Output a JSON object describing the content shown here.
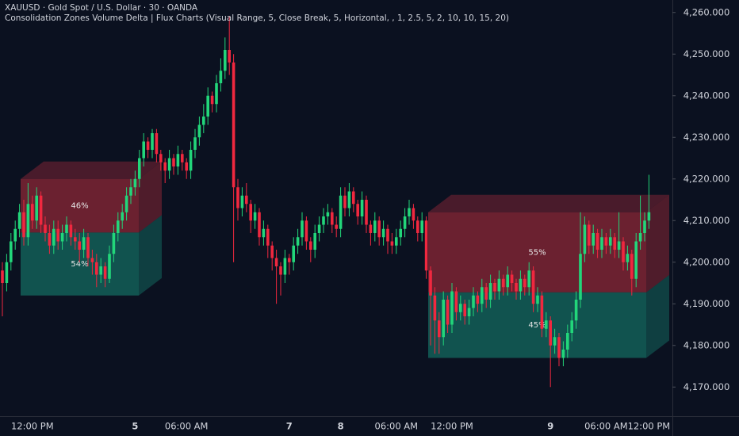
{
  "chart_data": {
    "type": "candlestick",
    "title": "XAUUSD · Gold Spot / U.S. Dollar · 30 · OANDA",
    "subtitle": "Consolidation Zones Volume Delta | Flux Charts (Visual Range, 5, Close Break, 5, Horizontal, , 1, 2.5, 5, 2, 10, 10, 15, 20)",
    "up_color": "#22d67a",
    "down_color": "#f0283f",
    "ylim": [
      4163,
      4263
    ],
    "yticks": [
      {
        "value": 4170,
        "label": "4,170.000"
      },
      {
        "value": 4180,
        "label": "4,180.000"
      },
      {
        "value": 4190,
        "label": "4,190.000"
      },
      {
        "value": 4200,
        "label": "4,200.000"
      },
      {
        "value": 4210,
        "label": "4,210.000"
      },
      {
        "value": 4220,
        "label": "4,220.000"
      },
      {
        "value": 4230,
        "label": "4,230.000"
      },
      {
        "value": 4240,
        "label": "4,240.000"
      },
      {
        "value": 4250,
        "label": "4,250.000"
      },
      {
        "value": 4260,
        "label": "4,260.000"
      }
    ],
    "grid": false,
    "categories": [
      null,
      null,
      null,
      null,
      null,
      null,
      null,
      "12:00 PM",
      null,
      null,
      null,
      null,
      null,
      null,
      null,
      null,
      null,
      null,
      null,
      null,
      null,
      null,
      null,
      null,
      null,
      null,
      null,
      null,
      null,
      null,
      null,
      "5",
      null,
      null,
      null,
      null,
      null,
      null,
      null,
      null,
      null,
      null,
      null,
      "06:00 AM",
      null,
      null,
      null,
      null,
      null,
      null,
      null,
      null,
      null,
      null,
      null,
      null,
      null,
      null,
      null,
      null,
      null,
      null,
      null,
      null,
      null,
      null,
      null,
      "7",
      null,
      null,
      null,
      null,
      null,
      null,
      null,
      null,
      null,
      null,
      null,
      "8",
      null,
      null,
      null,
      null,
      null,
      null,
      null,
      null,
      null,
      null,
      null,
      null,
      "06:00 AM",
      null,
      null,
      null,
      null,
      null,
      null,
      null,
      null,
      null,
      null,
      null,
      null,
      "12:00 PM",
      null,
      null,
      null,
      null,
      null,
      null,
      null,
      null,
      null,
      null,
      null,
      null,
      null,
      null,
      null,
      null,
      null,
      null,
      null,
      null,
      null,
      null,
      "9",
      null,
      null,
      null,
      null,
      null,
      null,
      null,
      null,
      null,
      null,
      null,
      null,
      "06:00 AM",
      null,
      null,
      null,
      null,
      null,
      null,
      null,
      null,
      null,
      "12:00 PM"
    ],
    "candles": [
      [
        4198,
        4200,
        4187,
        4195
      ],
      [
        4195,
        4202,
        4193,
        4200
      ],
      [
        4200,
        4207,
        4198,
        4205
      ],
      [
        4205,
        4210,
        4203,
        4208
      ],
      [
        4208,
        4214,
        4206,
        4212
      ],
      [
        4212,
        4215,
        4204,
        4206
      ],
      [
        4206,
        4219,
        4204,
        4214
      ],
      [
        4214,
        4216,
        4208,
        4210
      ],
      [
        4210,
        4218,
        4208,
        4216
      ],
      [
        4216,
        4217,
        4207,
        4209
      ],
      [
        4209,
        4211,
        4205,
        4207
      ],
      [
        4207,
        4209,
        4202,
        4204
      ],
      [
        4204,
        4210,
        4202,
        4208
      ],
      [
        4208,
        4210,
        4203,
        4205
      ],
      [
        4205,
        4209,
        4203,
        4207
      ],
      [
        4207,
        4211,
        4205,
        4209
      ],
      [
        4209,
        4210,
        4204,
        4206
      ],
      [
        4206,
        4208,
        4203,
        4205
      ],
      [
        4205,
        4207,
        4200,
        4203
      ],
      [
        4203,
        4208,
        4201,
        4206
      ],
      [
        4206,
        4207,
        4199,
        4201
      ],
      [
        4201,
        4203,
        4197,
        4200
      ],
      [
        4200,
        4202,
        4194,
        4197
      ],
      [
        4197,
        4201,
        4195,
        4199
      ],
      [
        4199,
        4200,
        4194,
        4196
      ],
      [
        4196,
        4204,
        4195,
        4202
      ],
      [
        4202,
        4209,
        4200,
        4207
      ],
      [
        4207,
        4212,
        4205,
        4210
      ],
      [
        4210,
        4214,
        4208,
        4212
      ],
      [
        4212,
        4218,
        4210,
        4216
      ],
      [
        4216,
        4220,
        4214,
        4218
      ],
      [
        4218,
        4222,
        4216,
        4220
      ],
      [
        4220,
        4227,
        4218,
        4225
      ],
      [
        4225,
        4231,
        4223,
        4229
      ],
      [
        4229,
        4230,
        4225,
        4227
      ],
      [
        4227,
        4232,
        4225,
        4231
      ],
      [
        4231,
        4232,
        4224,
        4226
      ],
      [
        4226,
        4227,
        4222,
        4224
      ],
      [
        4224,
        4225,
        4219,
        4222
      ],
      [
        4222,
        4227,
        4220,
        4225
      ],
      [
        4225,
        4226,
        4221,
        4223
      ],
      [
        4223,
        4228,
        4221,
        4226
      ],
      [
        4226,
        4227,
        4222,
        4224
      ],
      [
        4224,
        4225,
        4220,
        4222
      ],
      [
        4222,
        4229,
        4220,
        4227
      ],
      [
        4227,
        4232,
        4225,
        4230
      ],
      [
        4230,
        4235,
        4228,
        4233
      ],
      [
        4233,
        4238,
        4231,
        4235
      ],
      [
        4235,
        4242,
        4233,
        4240
      ],
      [
        4240,
        4241,
        4236,
        4238
      ],
      [
        4238,
        4245,
        4236,
        4243
      ],
      [
        4243,
        4249,
        4241,
        4246
      ],
      [
        4246,
        4254,
        4244,
        4251
      ],
      [
        4251,
        4259,
        4245,
        4248
      ],
      [
        4248,
        4250,
        4200,
        4218
      ],
      [
        4218,
        4220,
        4210,
        4213
      ],
      [
        4213,
        4218,
        4211,
        4216
      ],
      [
        4216,
        4219,
        4212,
        4214
      ],
      [
        4214,
        4215,
        4207,
        4210
      ],
      [
        4210,
        4214,
        4208,
        4212
      ],
      [
        4212,
        4213,
        4204,
        4206
      ],
      [
        4206,
        4210,
        4204,
        4208
      ],
      [
        4208,
        4209,
        4201,
        4204
      ],
      [
        4204,
        4205,
        4198,
        4201
      ],
      [
        4201,
        4203,
        4190,
        4199
      ],
      [
        4199,
        4200,
        4192,
        4197
      ],
      [
        4197,
        4203,
        4195,
        4201
      ],
      [
        4201,
        4202,
        4197,
        4200
      ],
      [
        4200,
        4206,
        4198,
        4204
      ],
      [
        4204,
        4208,
        4202,
        4206
      ],
      [
        4206,
        4212,
        4204,
        4210
      ],
      [
        4210,
        4211,
        4203,
        4205
      ],
      [
        4205,
        4206,
        4200,
        4203
      ],
      [
        4203,
        4209,
        4201,
        4207
      ],
      [
        4207,
        4211,
        4205,
        4209
      ],
      [
        4209,
        4213,
        4207,
        4211
      ],
      [
        4211,
        4214,
        4209,
        4212
      ],
      [
        4212,
        4213,
        4207,
        4209
      ],
      [
        4209,
        4211,
        4206,
        4208
      ],
      [
        4208,
        4218,
        4206,
        4216
      ],
      [
        4216,
        4218,
        4211,
        4213
      ],
      [
        4213,
        4219,
        4211,
        4217
      ],
      [
        4217,
        4218,
        4212,
        4214
      ],
      [
        4214,
        4215,
        4209,
        4211
      ],
      [
        4211,
        4217,
        4209,
        4215
      ],
      [
        4215,
        4216,
        4207,
        4209
      ],
      [
        4209,
        4210,
        4204,
        4207
      ],
      [
        4207,
        4212,
        4205,
        4210
      ],
      [
        4210,
        4211,
        4204,
        4206
      ],
      [
        4206,
        4210,
        4204,
        4208
      ],
      [
        4208,
        4209,
        4202,
        4205
      ],
      [
        4205,
        4207,
        4202,
        4204
      ],
      [
        4204,
        4208,
        4202,
        4206
      ],
      [
        4206,
        4210,
        4204,
        4208
      ],
      [
        4208,
        4213,
        4206,
        4211
      ],
      [
        4211,
        4215,
        4209,
        4213
      ],
      [
        4213,
        4214,
        4208,
        4210
      ],
      [
        4210,
        4211,
        4205,
        4207
      ],
      [
        4207,
        4212,
        4205,
        4210
      ],
      [
        4210,
        4211,
        4196,
        4198
      ],
      [
        4198,
        4199,
        4180,
        4192
      ],
      [
        4192,
        4194,
        4178,
        4186
      ],
      [
        4186,
        4188,
        4178,
        4182
      ],
      [
        4182,
        4193,
        4180,
        4191
      ],
      [
        4191,
        4192,
        4183,
        4185
      ],
      [
        4185,
        4195,
        4183,
        4193
      ],
      [
        4193,
        4194,
        4186,
        4188
      ],
      [
        4188,
        4192,
        4186,
        4190
      ],
      [
        4190,
        4191,
        4185,
        4187
      ],
      [
        4187,
        4191,
        4185,
        4189
      ],
      [
        4189,
        4194,
        4187,
        4192
      ],
      [
        4192,
        4193,
        4188,
        4190
      ],
      [
        4190,
        4196,
        4188,
        4194
      ],
      [
        4194,
        4195,
        4189,
        4191
      ],
      [
        4191,
        4197,
        4189,
        4195
      ],
      [
        4195,
        4196,
        4191,
        4193
      ],
      [
        4193,
        4198,
        4191,
        4196
      ],
      [
        4196,
        4197,
        4192,
        4194
      ],
      [
        4194,
        4199,
        4192,
        4197
      ],
      [
        4197,
        4198,
        4193,
        4195
      ],
      [
        4195,
        4196,
        4191,
        4193
      ],
      [
        4193,
        4198,
        4191,
        4196
      ],
      [
        4196,
        4197,
        4192,
        4194
      ],
      [
        4194,
        4200,
        4192,
        4198
      ],
      [
        4198,
        4199,
        4188,
        4190
      ],
      [
        4190,
        4194,
        4188,
        4192
      ],
      [
        4192,
        4193,
        4182,
        4184
      ],
      [
        4184,
        4188,
        4182,
        4186
      ],
      [
        4186,
        4187,
        4170,
        4180
      ],
      [
        4180,
        4184,
        4178,
        4182
      ],
      [
        4182,
        4183,
        4175,
        4177
      ],
      [
        4177,
        4181,
        4175,
        4179
      ],
      [
        4179,
        4185,
        4177,
        4183
      ],
      [
        4183,
        4188,
        4181,
        4186
      ],
      [
        4186,
        4193,
        4184,
        4191
      ],
      [
        4191,
        4212,
        4189,
        4202
      ],
      [
        4202,
        4211,
        4200,
        4209
      ],
      [
        4209,
        4210,
        4202,
        4204
      ],
      [
        4204,
        4209,
        4202,
        4207
      ],
      [
        4207,
        4208,
        4201,
        4203
      ],
      [
        4203,
        4208,
        4201,
        4206
      ],
      [
        4206,
        4207,
        4202,
        4204
      ],
      [
        4204,
        4208,
        4202,
        4206
      ],
      [
        4206,
        4207,
        4201,
        4203
      ],
      [
        4203,
        4212,
        4201,
        4205
      ],
      [
        4205,
        4206,
        4198,
        4200
      ],
      [
        4200,
        4204,
        4198,
        4202
      ],
      [
        4202,
        4203,
        4192,
        4196
      ],
      [
        4196,
        4207,
        4194,
        4205
      ],
      [
        4205,
        4216,
        4203,
        4207
      ],
      [
        4207,
        4212,
        4205,
        4210
      ],
      [
        4210,
        4221,
        4208,
        4212
      ]
    ],
    "zone_colors": [
      "#7d2434",
      "#135f58"
    ],
    "zones": [
      {
        "top": 4220,
        "bottom": 4192,
        "values": [
          46,
          54
        ],
        "value_labels": [
          "46%",
          "54%"
        ]
      },
      {
        "top": 4212,
        "bottom": 4177,
        "values": [
          55,
          45
        ],
        "value_labels": [
          "55%",
          "45%"
        ]
      }
    ]
  }
}
